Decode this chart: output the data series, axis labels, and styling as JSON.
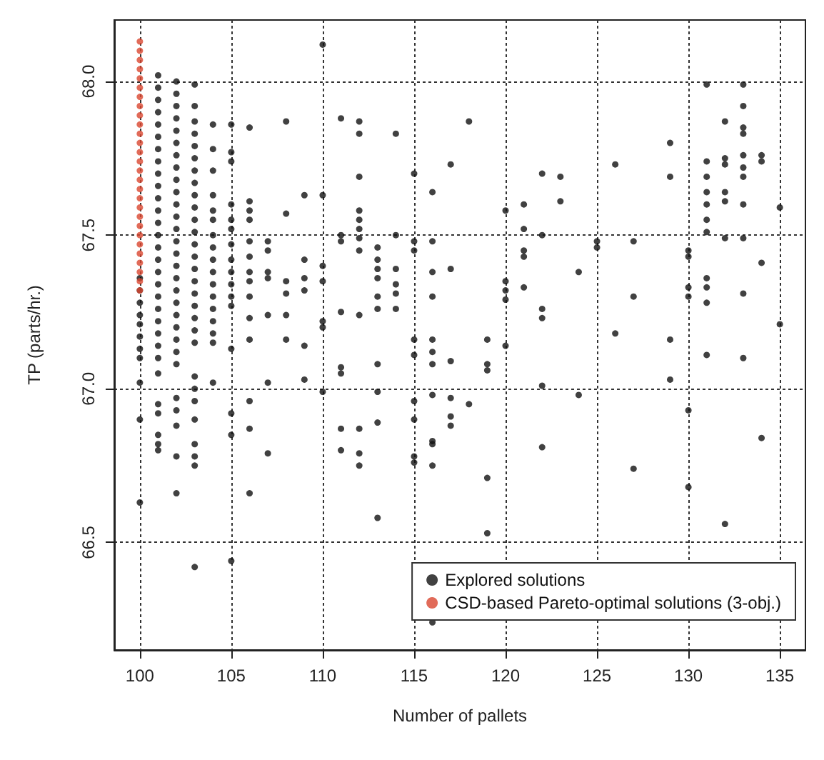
{
  "chart_data": {
    "type": "scatter",
    "xlabel": "Number of pallets",
    "ylabel": "TP (parts/hr.)",
    "xlim": [
      98.6,
      136.4
    ],
    "ylim": [
      66.15,
      68.2
    ],
    "xticks": [
      100,
      105,
      110,
      115,
      120,
      125,
      130,
      135
    ],
    "yticks": [
      66.5,
      {
        "value": 67,
        "label": "67.0"
      },
      67.5,
      {
        "value": 68,
        "label": "68.0"
      }
    ],
    "grid": true,
    "legend": "bottom right",
    "marker": "circle",
    "series": [
      {
        "name": "Explored solutions",
        "color": "#111111",
        "x": [
          100,
          100,
          100,
          100,
          100,
          100,
          100,
          100,
          100,
          100,
          100,
          101,
          101,
          101,
          101,
          101,
          101,
          101,
          101,
          101,
          101,
          101,
          101,
          101,
          101,
          101,
          101,
          101,
          101,
          101,
          101,
          101,
          101,
          101,
          101,
          101,
          101,
          101,
          101,
          101,
          101,
          102,
          102,
          102,
          102,
          102,
          102,
          102,
          102,
          102,
          102,
          102,
          102,
          102,
          102,
          102,
          102,
          102,
          102,
          102,
          102,
          102,
          102,
          102,
          102,
          102,
          102,
          102,
          102,
          102,
          103,
          103,
          103,
          103,
          103,
          103,
          103,
          103,
          103,
          103,
          103,
          103,
          103,
          103,
          103,
          103,
          103,
          103,
          103,
          103,
          103,
          103,
          103,
          103,
          103,
          103,
          103,
          103,
          103,
          104,
          104,
          104,
          104,
          104,
          104,
          104,
          104,
          104,
          104,
          104,
          104,
          104,
          104,
          104,
          104,
          104,
          105,
          105,
          105,
          105,
          105,
          105,
          105,
          105,
          105,
          105,
          105,
          105,
          105,
          105,
          105,
          105,
          106,
          106,
          106,
          106,
          106,
          106,
          106,
          106,
          106,
          106,
          106,
          106,
          106,
          106,
          107,
          107,
          107,
          107,
          107,
          107,
          107,
          108,
          108,
          108,
          108,
          108,
          108,
          109,
          109,
          109,
          109,
          109,
          109,
          110,
          110,
          110,
          110,
          110,
          110,
          110,
          111,
          111,
          111,
          111,
          111,
          111,
          111,
          111,
          112,
          112,
          112,
          112,
          112,
          112,
          112,
          112,
          112,
          112,
          112,
          112,
          113,
          113,
          113,
          113,
          113,
          113,
          113,
          113,
          113,
          113,
          114,
          114,
          114,
          114,
          114,
          114,
          115,
          115,
          115,
          115,
          115,
          115,
          115,
          115,
          115,
          116,
          116,
          116,
          116,
          116,
          116,
          116,
          116,
          116,
          116,
          116,
          116,
          117,
          117,
          117,
          117,
          117,
          117,
          118,
          118,
          119,
          119,
          119,
          119,
          119,
          120,
          120,
          120,
          120,
          120,
          121,
          121,
          121,
          121,
          121,
          122,
          122,
          122,
          122,
          122,
          122,
          123,
          123,
          124,
          124,
          125,
          125,
          126,
          126,
          127,
          127,
          127,
          129,
          129,
          129,
          129,
          130,
          130,
          130,
          130,
          130,
          130,
          131,
          131,
          131,
          131,
          131,
          131,
          131,
          131,
          131,
          131,
          131,
          132,
          132,
          132,
          132,
          132,
          132,
          132,
          133,
          133,
          133,
          133,
          133,
          133,
          133,
          133,
          133,
          133,
          133,
          134,
          134,
          134,
          134,
          135,
          135
        ],
        "values": [
          67.36,
          67.32,
          67.28,
          67.24,
          67.21,
          67.17,
          67.13,
          67.1,
          67.02,
          66.9,
          66.63,
          68.02,
          67.98,
          67.94,
          67.9,
          67.86,
          67.82,
          67.78,
          67.74,
          67.7,
          67.66,
          67.62,
          67.58,
          67.54,
          67.5,
          67.46,
          67.42,
          67.38,
          67.34,
          67.3,
          67.26,
          67.22,
          67.18,
          67.14,
          67.1,
          67.05,
          66.95,
          66.92,
          66.85,
          66.82,
          66.8,
          68.0,
          67.96,
          67.92,
          67.88,
          67.84,
          67.8,
          67.76,
          67.72,
          67.68,
          67.64,
          67.6,
          67.56,
          67.52,
          67.48,
          67.44,
          67.4,
          67.36,
          67.32,
          67.28,
          67.24,
          67.2,
          67.16,
          67.12,
          67.08,
          66.97,
          66.93,
          66.88,
          66.78,
          66.66,
          67.99,
          67.92,
          67.87,
          67.83,
          67.79,
          67.75,
          67.71,
          67.67,
          67.63,
          67.59,
          67.55,
          67.51,
          67.47,
          67.43,
          67.39,
          67.35,
          67.31,
          67.27,
          67.23,
          67.19,
          67.15,
          67.04,
          67.0,
          66.96,
          66.9,
          66.82,
          66.78,
          66.75,
          66.42,
          67.86,
          67.78,
          67.71,
          67.63,
          67.58,
          67.55,
          67.5,
          67.46,
          67.42,
          67.38,
          67.34,
          67.3,
          67.26,
          67.22,
          67.18,
          67.15,
          67.02,
          67.86,
          67.77,
          67.74,
          67.6,
          67.55,
          67.52,
          67.47,
          67.42,
          67.38,
          67.34,
          67.3,
          67.27,
          67.13,
          66.92,
          66.85,
          66.44,
          67.85,
          67.61,
          67.58,
          67.55,
          67.48,
          67.43,
          67.38,
          67.35,
          67.3,
          67.23,
          67.16,
          66.96,
          66.87,
          66.66,
          67.48,
          67.45,
          67.38,
          67.36,
          67.24,
          67.02,
          66.79,
          67.87,
          67.57,
          67.35,
          67.31,
          67.24,
          67.16,
          67.63,
          67.42,
          67.36,
          67.32,
          67.14,
          67.03,
          68.12,
          67.63,
          67.4,
          67.35,
          67.22,
          67.2,
          66.99,
          67.88,
          67.5,
          67.48,
          67.25,
          67.07,
          67.05,
          66.87,
          66.8,
          67.87,
          67.83,
          67.69,
          67.58,
          67.55,
          67.52,
          67.49,
          67.45,
          67.24,
          66.87,
          66.79,
          66.75,
          67.46,
          67.42,
          67.39,
          67.36,
          67.3,
          67.26,
          67.08,
          66.99,
          66.89,
          66.58,
          67.83,
          67.5,
          67.39,
          67.34,
          67.31,
          67.26,
          67.7,
          67.48,
          67.45,
          67.16,
          67.11,
          66.96,
          66.9,
          66.78,
          66.76,
          67.64,
          67.48,
          67.38,
          67.3,
          67.16,
          67.12,
          67.08,
          66.98,
          66.83,
          66.82,
          66.75,
          66.24,
          67.73,
          67.39,
          67.09,
          66.97,
          66.91,
          66.88,
          67.87,
          66.95,
          67.16,
          67.08,
          67.06,
          66.71,
          66.53,
          67.58,
          67.35,
          67.32,
          67.29,
          67.14,
          67.6,
          67.52,
          67.45,
          67.43,
          67.33,
          67.7,
          67.5,
          67.26,
          67.23,
          67.01,
          66.81,
          67.69,
          67.61,
          67.38,
          66.98,
          67.48,
          67.46,
          67.73,
          67.18,
          67.48,
          67.3,
          66.74,
          67.8,
          67.69,
          67.16,
          67.03,
          67.45,
          67.43,
          67.33,
          67.3,
          66.93,
          66.68,
          67.99,
          67.74,
          67.69,
          67.64,
          67.6,
          67.55,
          67.51,
          67.36,
          67.33,
          67.28,
          67.11,
          67.87,
          67.75,
          67.73,
          67.64,
          67.61,
          67.49,
          66.56,
          67.99,
          67.92,
          67.85,
          67.83,
          67.76,
          67.72,
          67.69,
          67.6,
          67.49,
          67.31,
          67.1,
          67.76,
          67.74,
          67.41,
          66.84,
          67.59,
          67.21
        ]
      },
      {
        "name": "CSD-based Pareto-optimal solutions (3-obj.)",
        "color": "#d9462f",
        "x": [
          100,
          100,
          100,
          100,
          100,
          100,
          100,
          100,
          100,
          100,
          100,
          100,
          100,
          100,
          100,
          100,
          100,
          100,
          100,
          100,
          100,
          100,
          100,
          100,
          100,
          100,
          100,
          100
        ],
        "values": [
          68.13,
          68.1,
          68.07,
          68.04,
          68.01,
          67.98,
          67.95,
          67.92,
          67.89,
          67.86,
          67.83,
          67.8,
          67.77,
          67.74,
          67.71,
          67.68,
          67.65,
          67.62,
          67.59,
          67.56,
          67.53,
          67.5,
          67.47,
          67.44,
          67.41,
          67.38,
          67.35,
          67.32
        ]
      }
    ]
  }
}
